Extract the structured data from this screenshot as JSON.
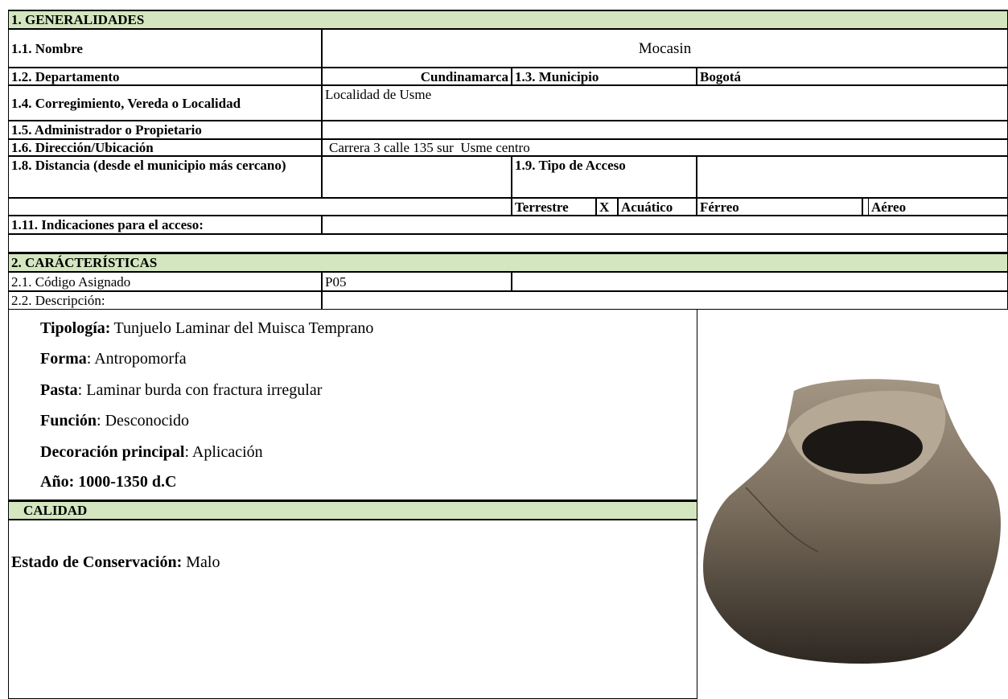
{
  "general": {
    "title": "1. GENERALIDADES",
    "nombre": {
      "label": "1.1. Nombre",
      "value": "Mocasin"
    },
    "departamento": {
      "label": "1.2. Departamento",
      "value": "Cundinamarca"
    },
    "municipio": {
      "label": "1.3. Municipio",
      "value": "Bogotá"
    },
    "localidad": {
      "label": "1.4. Corregimiento, Vereda o Localidad",
      "value": "Localidad de Usme"
    },
    "administrador": {
      "label": "1.5. Administrador o Propietario"
    },
    "direccion": {
      "label": "1.6. Dirección/Ubicación",
      "value": "Carrera 3 calle 135 sur  Usme centro"
    },
    "distancia": {
      "label": "1.8. Distancia (desde el municipio más cercano)"
    },
    "tipo_acceso": {
      "label": "1.9. Tipo de Acceso",
      "options": [
        "Terrestre",
        "X",
        "Acuático",
        "Férreo",
        "Aéreo"
      ]
    },
    "indicaciones": {
      "label": "1.11. Indicaciones para el acceso:"
    }
  },
  "caracteristicas": {
    "title": "2. CARÁCTERÍSTICAS",
    "codigo": {
      "label": "2.1. Código Asignado",
      "value": "P05"
    },
    "descripcion": {
      "label": "2.2. Descripción:"
    },
    "details": [
      {
        "label": "Tipología:",
        "value": "Tunjuelo Laminar del Muisca Temprano"
      },
      {
        "label": "Forma",
        "value": ": Antropomorfa"
      },
      {
        "label": "Pasta",
        "value": ": Laminar burda con fractura irregular"
      },
      {
        "label": "Función",
        "value": ": Desconocido"
      },
      {
        "label": "Decoración principal",
        "value": ": Aplicación"
      },
      {
        "label": "Año: 1000-1350 d.C"
      }
    ]
  },
  "calidad": {
    "title": "CALIDAD",
    "estado": {
      "label": "Estado de Conservación:",
      "value": "Malo"
    }
  }
}
